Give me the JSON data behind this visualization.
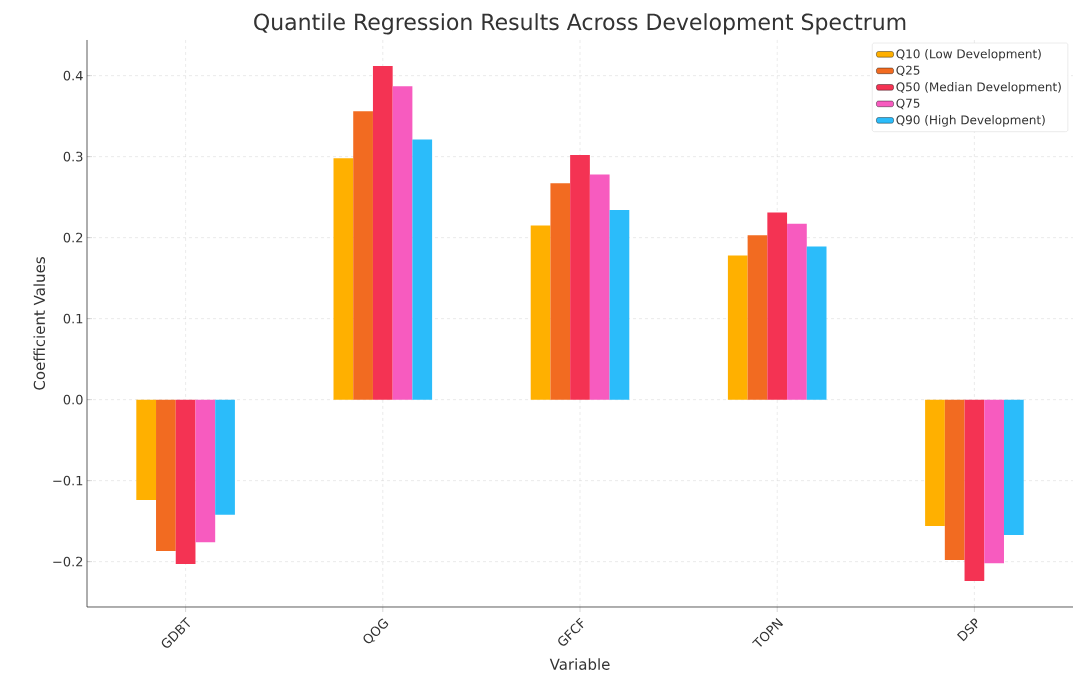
{
  "chart_data": {
    "type": "bar",
    "title": "Quantile Regression Results Across Development Spectrum",
    "xlabel": "Variable",
    "ylabel": "Coefficient Values",
    "categories": [
      "GDBT",
      "QOG",
      "GFCF",
      "TOPN",
      "DSP"
    ],
    "series": [
      {
        "name": "Q10 (Low Development)",
        "color": "#ffb000",
        "values": [
          -0.124,
          0.298,
          0.215,
          0.178,
          -0.156
        ]
      },
      {
        "name": "Q25",
        "color": "#f26b21",
        "values": [
          -0.187,
          0.356,
          0.267,
          0.203,
          -0.198
        ]
      },
      {
        "name": "Q50 (Median Development)",
        "color": "#f43353",
        "values": [
          -0.203,
          0.412,
          0.302,
          0.231,
          -0.224
        ]
      },
      {
        "name": "Q75",
        "color": "#f75bbf",
        "values": [
          -0.176,
          0.387,
          0.278,
          0.217,
          -0.202
        ]
      },
      {
        "name": "Q90 (High Development)",
        "color": "#2bbcfa",
        "values": [
          -0.142,
          0.321,
          0.234,
          0.189,
          -0.167
        ]
      }
    ],
    "ylim": [
      -0.256,
      0.444
    ],
    "yticks": [
      {
        "value": -0.2,
        "label": "−0.2"
      },
      {
        "value": -0.1,
        "label": "−0.1"
      },
      {
        "value": 0.0,
        "label": "0.0"
      },
      {
        "value": 0.1,
        "label": "0.1"
      },
      {
        "value": 0.2,
        "label": "0.2"
      },
      {
        "value": 0.3,
        "label": "0.3"
      },
      {
        "value": 0.4,
        "label": "0.4"
      }
    ],
    "grid": true,
    "legend": "top right"
  }
}
